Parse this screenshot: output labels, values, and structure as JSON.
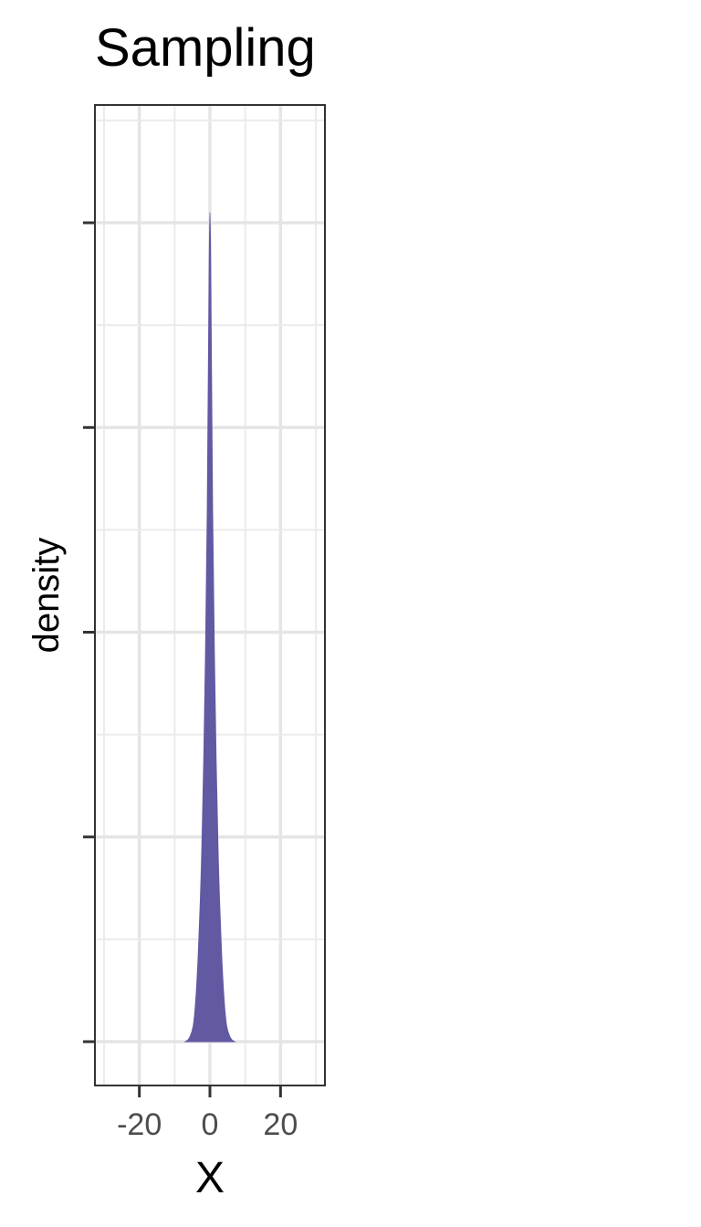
{
  "chart_data": {
    "type": "area",
    "title": "Sampling",
    "xlabel": "X",
    "ylabel": "density",
    "x_ticks": [
      -20,
      0,
      20
    ],
    "x_tick_labels": [
      "-20",
      "0",
      "20"
    ],
    "y_tick_labels": [],
    "xlim": [
      -30,
      30
    ],
    "ylim": [
      0,
      4.6
    ],
    "y_ticks": [
      0,
      1,
      2,
      3,
      4
    ],
    "grid": true,
    "fill_color": "#6259a3",
    "series": [
      {
        "x": [
          -7,
          -6,
          -5,
          -4.5,
          -4,
          -3.5,
          -3,
          -2.5,
          -2,
          -1.5,
          -1,
          -0.5,
          0,
          0.5,
          1,
          1.5,
          2,
          2.5,
          3,
          3.5,
          4,
          4.5,
          5,
          6,
          7
        ],
        "y": [
          0,
          0.01,
          0.05,
          0.1,
          0.2,
          0.35,
          0.55,
          0.8,
          1.15,
          1.6,
          2.2,
          3.0,
          4.4,
          3.0,
          2.2,
          1.6,
          1.15,
          0.8,
          0.55,
          0.35,
          0.2,
          0.1,
          0.05,
          0.01,
          0
        ]
      }
    ]
  }
}
